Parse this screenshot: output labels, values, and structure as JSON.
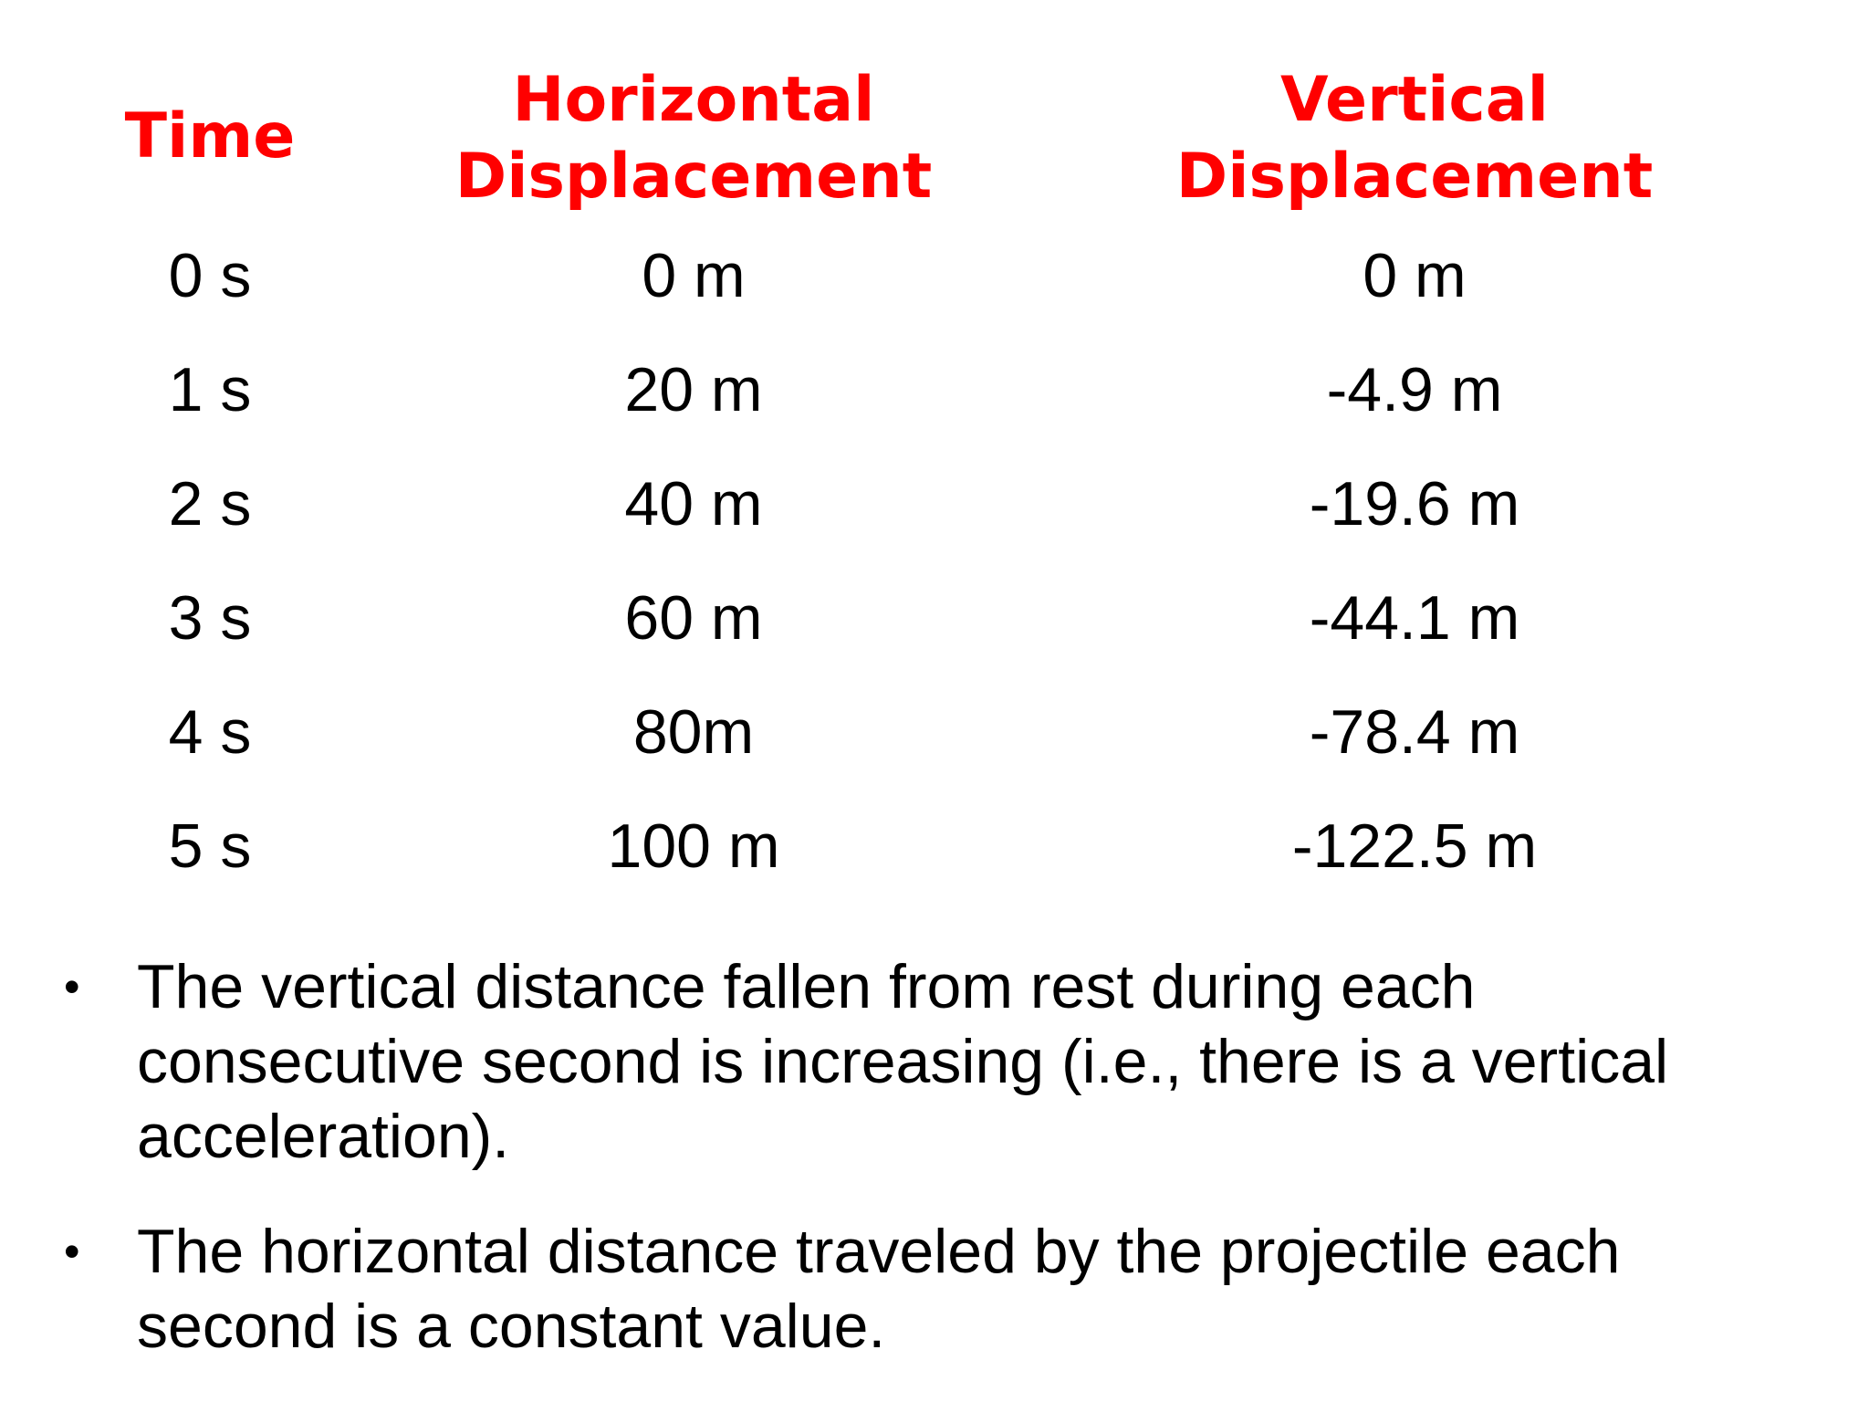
{
  "table": {
    "headers": {
      "time": "Time",
      "horizontal": [
        "Horizontal",
        "Displacement"
      ],
      "vertical": [
        "Vertical",
        "Displacement"
      ]
    },
    "rows": [
      {
        "time": "0 s",
        "horizontal": "0 m",
        "vertical": "0 m"
      },
      {
        "time": "1 s",
        "horizontal": "20 m",
        "vertical": "-4.9 m"
      },
      {
        "time": "2 s",
        "horizontal": "40 m",
        "vertical": "-19.6 m"
      },
      {
        "time": "3 s",
        "horizontal": "60 m",
        "vertical": "-44.1 m"
      },
      {
        "time": "4 s",
        "horizontal": "80m",
        "vertical": "-78.4 m"
      },
      {
        "time": "5 s",
        "horizontal": "100 m",
        "vertical": "-122.5 m"
      }
    ]
  },
  "bullets": [
    "The vertical distance fallen from rest during each consecutive second is increasing (i.e., there is a vertical acceleration).",
    "The horizontal distance traveled by the projectile each second is a constant value."
  ],
  "colors": {
    "header": "#ff0000",
    "text": "#000000",
    "background": "#ffffff"
  },
  "bullet_glyph": "•"
}
